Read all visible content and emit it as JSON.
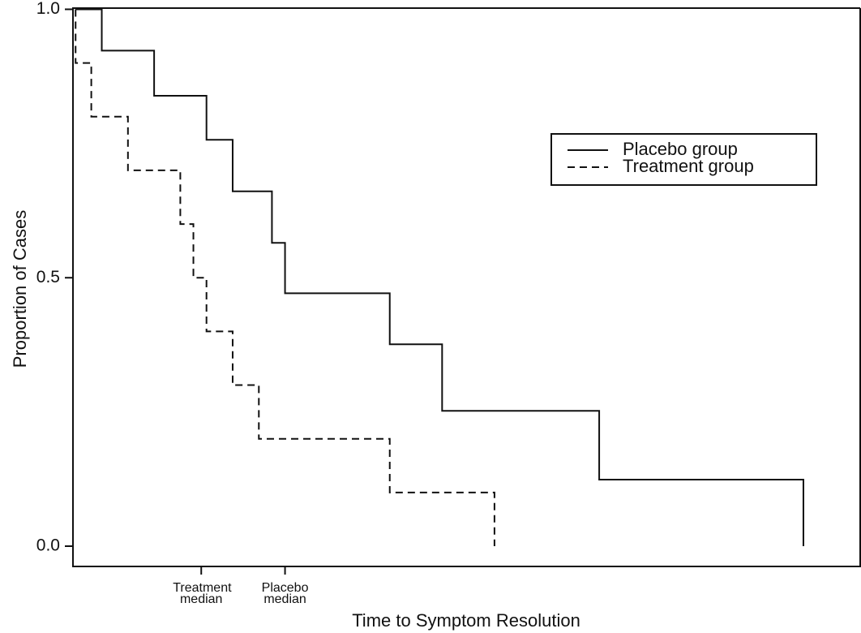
{
  "chart_data": {
    "type": "step",
    "xlabel": "Time to Symptom Resolution",
    "ylabel": "Proportion of Cases",
    "xlim": [
      -0.1,
      30
    ],
    "ylim": [
      0,
      1.04
    ],
    "xticks": [
      {
        "value": 4.8,
        "label": "Treatment median"
      },
      {
        "value": 8,
        "label": "Placebo median"
      }
    ],
    "yticks": [
      {
        "value": 0,
        "label": "0.0"
      },
      {
        "value": 0.5,
        "label": "0.5"
      },
      {
        "value": 1,
        "label": "1.0"
      }
    ],
    "legend": "upper right",
    "series": [
      {
        "name": "Placebo group",
        "color": "#111111",
        "dash": "solid",
        "x": [
          0,
          1,
          3,
          5,
          6,
          7.5,
          8,
          12,
          14,
          20,
          27.8
        ],
        "values": [
          1,
          0.923,
          0.839,
          0.757,
          0.661,
          0.565,
          0.471,
          0.376,
          0.252,
          0.124,
          0
        ]
      },
      {
        "name": "Treatment group",
        "color": "#111111",
        "dash": "dashed",
        "x": [
          0,
          0,
          0.6,
          2,
          4,
          4.5,
          5,
          6,
          7,
          12,
          16
        ],
        "values": [
          1,
          0.9,
          0.8,
          0.7,
          0.6,
          0.5,
          0.4,
          0.3,
          0.2,
          0.1,
          0
        ]
      }
    ]
  }
}
